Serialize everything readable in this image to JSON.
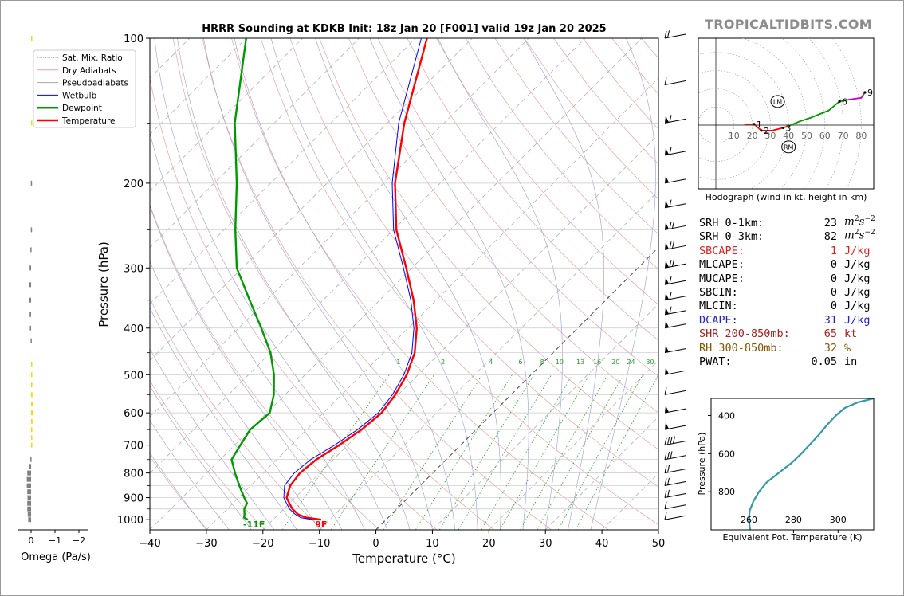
{
  "brand": "TROPICALTIDBITS.COM",
  "chart_data": [
    {
      "type": "line",
      "title": "HRRR Sounding at KDKB Init: 18z Jan 20 [F001] valid 19z Jan 20 2025",
      "xlabel": "Temperature (°C)",
      "ylabel": "Pressure (hPa)",
      "xlim": [
        -40,
        50
      ],
      "ylim": [
        1050,
        100
      ],
      "yscale": "log",
      "skew": "45-degree skew-T",
      "x_ticks": [
        "−40",
        "−30",
        "−20",
        "−10",
        "0",
        "10",
        "20",
        "30",
        "40",
        "50"
      ],
      "x_tick_values": [
        -40,
        -30,
        -20,
        -10,
        0,
        10,
        20,
        30,
        40,
        50
      ],
      "y_ticks": [
        "100",
        "200",
        "300",
        "400",
        "500",
        "600",
        "700",
        "800",
        "900",
        "1000"
      ],
      "y_tick_values": [
        100,
        200,
        300,
        400,
        500,
        600,
        700,
        800,
        900,
        1000
      ],
      "legend": {
        "placement": "upper-left",
        "entries": [
          {
            "label": "Sat. Mix. Ratio",
            "color": "#2ca02c",
            "style": "dotted"
          },
          {
            "label": "Dry Adiabats",
            "color": "#e8a0a0",
            "style": "solid"
          },
          {
            "label": "Pseudoadiabats",
            "color": "#a8a8a8",
            "style": "solid"
          },
          {
            "label": "Wetbulb",
            "color": "#0000ff",
            "style": "solid"
          },
          {
            "label": "Dewpoint",
            "color": "#009900",
            "style": "solid"
          },
          {
            "label": "Temperature",
            "color": "#ff0000",
            "style": "solid"
          }
        ]
      },
      "series": [
        {
          "name": "Temperature",
          "color": "#ff0000",
          "points": [
            [
              1000,
              -11.5
            ],
            [
              990,
              -14.5
            ],
            [
              975,
              -16.5
            ],
            [
              950,
              -18.5
            ],
            [
              925,
              -20
            ],
            [
              900,
              -21.5
            ],
            [
              850,
              -23
            ],
            [
              800,
              -23.5
            ],
            [
              750,
              -23
            ],
            [
              700,
              -21.5
            ],
            [
              650,
              -20.3
            ],
            [
              600,
              -19.7
            ],
            [
              550,
              -20.5
            ],
            [
              500,
              -22
            ],
            [
              450,
              -24.5
            ],
            [
              400,
              -28.5
            ],
            [
              350,
              -34
            ],
            [
              300,
              -41
            ],
            [
              250,
              -49.5
            ],
            [
              200,
              -58
            ],
            [
              150,
              -67
            ],
            [
              100,
              -78
            ]
          ]
        },
        {
          "name": "Wetbulb",
          "color": "#0000ff",
          "points": [
            [
              1000,
              -13
            ],
            [
              990,
              -15.5
            ],
            [
              975,
              -17
            ],
            [
              950,
              -19
            ],
            [
              925,
              -20.5
            ],
            [
              900,
              -22
            ],
            [
              850,
              -24
            ],
            [
              800,
              -24.5
            ],
            [
              750,
              -24
            ],
            [
              700,
              -22.3
            ],
            [
              650,
              -21
            ],
            [
              600,
              -20.3
            ],
            [
              550,
              -21
            ],
            [
              500,
              -22.5
            ],
            [
              450,
              -25
            ],
            [
              400,
              -29
            ],
            [
              350,
              -34.5
            ],
            [
              300,
              -41.5
            ],
            [
              250,
              -50
            ],
            [
              200,
              -58.5
            ],
            [
              150,
              -68
            ],
            [
              100,
              -79
            ]
          ]
        },
        {
          "name": "Dewpoint",
          "color": "#009900",
          "points": [
            [
              1000,
              -24.5
            ],
            [
              990,
              -25.5
            ],
            [
              975,
              -26
            ],
            [
              950,
              -27
            ],
            [
              925,
              -27.5
            ],
            [
              900,
              -29
            ],
            [
              850,
              -32
            ],
            [
              800,
              -35
            ],
            [
              750,
              -38
            ],
            [
              700,
              -39
            ],
            [
              650,
              -40
            ],
            [
              600,
              -39.5
            ],
            [
              550,
              -42
            ],
            [
              500,
              -45.5
            ],
            [
              450,
              -50
            ],
            [
              400,
              -56
            ],
            [
              350,
              -63
            ],
            [
              300,
              -71
            ],
            [
              250,
              -78
            ],
            [
              200,
              -86
            ],
            [
              150,
              -97
            ],
            [
              100,
              -110
            ]
          ]
        }
      ],
      "surface_labels": [
        {
          "text": "-11F",
          "color": "#009900"
        },
        {
          "text": "9F",
          "color": "#ff0000"
        }
      ],
      "mixing_ratio_labels": [
        "1",
        "2",
        "4",
        "6",
        "8",
        "10",
        "13",
        "16",
        "20",
        "24",
        "30",
        "36"
      ],
      "wind_barbs": "right margin"
    },
    {
      "type": "bar",
      "xlabel": "Omega (Pa/s)",
      "x_ticks": [
        "0",
        "−1",
        "−2"
      ],
      "x_tick_values": [
        0,
        -1,
        -2
      ],
      "orientation": "horizontal",
      "profile": [
        {
          "p": 1000,
          "omega": 0.12,
          "color": "#808080"
        },
        {
          "p": 975,
          "omega": 0.14,
          "color": "#808080"
        },
        {
          "p": 950,
          "omega": 0.16,
          "color": "#808080"
        },
        {
          "p": 925,
          "omega": 0.16,
          "color": "#808080"
        },
        {
          "p": 900,
          "omega": 0.15,
          "color": "#808080"
        },
        {
          "p": 875,
          "omega": 0.16,
          "color": "#808080"
        },
        {
          "p": 850,
          "omega": 0.18,
          "color": "#808080"
        },
        {
          "p": 825,
          "omega": 0.18,
          "color": "#808080"
        },
        {
          "p": 800,
          "omega": 0.16,
          "color": "#808080"
        },
        {
          "p": 775,
          "omega": 0.08,
          "color": "#808080"
        },
        {
          "p": 750,
          "omega": 0.03,
          "color": "#808080"
        },
        {
          "p": 700,
          "omega": -0.02,
          "color": "#ffd700"
        },
        {
          "p": 675,
          "omega": -0.04,
          "color": "#ffd700"
        },
        {
          "p": 650,
          "omega": -0.05,
          "color": "#ffd700"
        },
        {
          "p": 625,
          "omega": -0.06,
          "color": "#ffd700"
        },
        {
          "p": 600,
          "omega": -0.07,
          "color": "#ffd700"
        },
        {
          "p": 575,
          "omega": -0.07,
          "color": "#ffd700"
        },
        {
          "p": 550,
          "omega": -0.06,
          "color": "#ffd700"
        },
        {
          "p": 525,
          "omega": -0.05,
          "color": "#ffd700"
        },
        {
          "p": 500,
          "omega": -0.03,
          "color": "#ffd700"
        },
        {
          "p": 475,
          "omega": -0.02,
          "color": "#ffd700"
        },
        {
          "p": 425,
          "omega": 0.02,
          "color": "#808080"
        },
        {
          "p": 400,
          "omega": 0.05,
          "color": "#808080"
        },
        {
          "p": 375,
          "omega": 0.06,
          "color": "#808080"
        },
        {
          "p": 350,
          "omega": 0.07,
          "color": "#808080"
        },
        {
          "p": 325,
          "omega": 0.07,
          "color": "#808080"
        },
        {
          "p": 300,
          "omega": 0.06,
          "color": "#808080"
        },
        {
          "p": 275,
          "omega": 0.03,
          "color": "#808080"
        },
        {
          "p": 250,
          "omega": 0.01,
          "color": "#808080"
        },
        {
          "p": 200,
          "omega": 0.01,
          "color": "#808080"
        },
        {
          "p": 150,
          "omega": -0.01,
          "color": "#ffd700"
        },
        {
          "p": 100,
          "omega": -0.01,
          "color": "#ffd700"
        }
      ]
    },
    {
      "type": "line",
      "caption": "Hodograph (wind in kt, height in km)",
      "ring_labels": [
        "10",
        "20",
        "30",
        "40",
        "50",
        "60",
        "70",
        "80"
      ],
      "ring_values": [
        10,
        20,
        30,
        40,
        50,
        60,
        70,
        80
      ],
      "u_range": [
        -10,
        86
      ],
      "v_range": [
        -35,
        48
      ],
      "points": [
        {
          "u": 16,
          "v": 0.5,
          "h": 0,
          "color": "#ff0000"
        },
        {
          "u": 21,
          "v": 0.5,
          "h": 1,
          "color": "#ff0000"
        },
        {
          "u": 25,
          "v": -3,
          "h": 2,
          "color": "#ff0000"
        },
        {
          "u": 31,
          "v": -3,
          "h": 2.5,
          "color": "#ff0000"
        },
        {
          "u": 37,
          "v": -1.5,
          "h": 3,
          "color": "#ff0000"
        },
        {
          "u": 40,
          "v": -0.5,
          "h": 3,
          "color": "#009900"
        },
        {
          "u": 46,
          "v": 2,
          "h": 4,
          "color": "#009900"
        },
        {
          "u": 52,
          "v": 4,
          "h": 4.5,
          "color": "#009900"
        },
        {
          "u": 62,
          "v": 8,
          "h": 5.5,
          "color": "#009900"
        },
        {
          "u": 68,
          "v": 13,
          "h": 6,
          "color": "#009900"
        },
        {
          "u": 73,
          "v": 14,
          "h": 7,
          "color": "#cc00cc"
        },
        {
          "u": 80,
          "v": 15,
          "h": 8,
          "color": "#cc00cc"
        },
        {
          "u": 82,
          "v": 18,
          "h": 9,
          "color": "#0000ff"
        }
      ],
      "height_labels": [
        {
          "text": "1",
          "u": 21,
          "v": 0.5
        },
        {
          "text": "2",
          "u": 25,
          "v": -3
        },
        {
          "text": "3",
          "u": 37,
          "v": -1.5
        },
        {
          "text": "6",
          "u": 68,
          "v": 13
        },
        {
          "text": "9",
          "u": 82,
          "v": 18
        }
      ],
      "motion_markers": [
        {
          "text": "LM",
          "u": 34,
          "v": 13
        },
        {
          "text": "RM",
          "u": 40,
          "v": -12
        }
      ]
    },
    {
      "type": "line",
      "xlabel": "Equivalent Pot. Temperature (K)",
      "ylabel": "Pressure (hPa)",
      "x_ticks": [
        "260",
        "280",
        "300"
      ],
      "x_tick_values": [
        260,
        280,
        300
      ],
      "y_ticks": [
        "400",
        "600",
        "800"
      ],
      "y_tick_values": [
        400,
        600,
        800
      ],
      "xlim": [
        243,
        316
      ],
      "ylim": [
        1000,
        310
      ],
      "series": [
        {
          "name": "",
          "color": "#3399aa",
          "points": [
            [
              1000,
              260.5
            ],
            [
              950,
              260
            ],
            [
              900,
              260.3
            ],
            [
              850,
              262
            ],
            [
              800,
              264.5
            ],
            [
              750,
              268
            ],
            [
              700,
              273.5
            ],
            [
              650,
              279
            ],
            [
              600,
              283.5
            ],
            [
              550,
              287.5
            ],
            [
              500,
              291.5
            ],
            [
              450,
              295
            ],
            [
              400,
              299
            ],
            [
              360,
              303
            ],
            [
              330,
              309
            ],
            [
              310,
              316
            ]
          ]
        }
      ]
    }
  ],
  "indices": [
    {
      "label": "SRH 0-1km:",
      "value": "23",
      "unit": "m2s-2",
      "color": "#000000"
    },
    {
      "label": "SRH 0-3km:",
      "value": "82",
      "unit": "m2s-2",
      "color": "#000000"
    },
    {
      "label": "SBCAPE:",
      "value": "1",
      "unit": "J/kg",
      "color": "#dd2222"
    },
    {
      "label": "MLCAPE:",
      "value": "0",
      "unit": "J/kg",
      "color": "#000000"
    },
    {
      "label": "MUCAPE:",
      "value": "0",
      "unit": "J/kg",
      "color": "#000000"
    },
    {
      "label": "SBCIN:",
      "value": "0",
      "unit": "J/kg",
      "color": "#000000"
    },
    {
      "label": "MLCIN:",
      "value": "0",
      "unit": "J/kg",
      "color": "#000000"
    },
    {
      "label": "DCAPE:",
      "value": "31",
      "unit": "J/kg",
      "color": "#2222cc"
    },
    {
      "label": "SHR 200-850mb:",
      "value": "65",
      "unit": "kt",
      "color": "#aa2222"
    },
    {
      "label": "RH 300-850mb:",
      "value": "32",
      "unit": "%",
      "color": "#885500"
    },
    {
      "label": "PWAT:",
      "value": "0.05",
      "unit": "in",
      "color": "#000000"
    }
  ]
}
